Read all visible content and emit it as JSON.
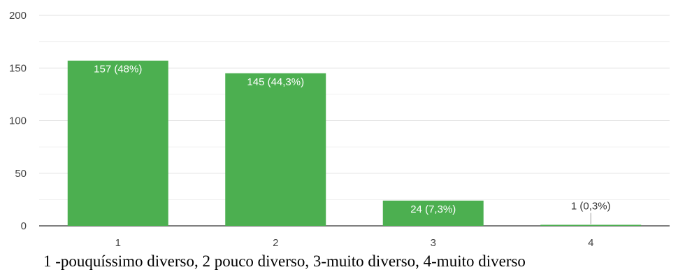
{
  "chart_data": {
    "type": "bar",
    "categories": [
      "1",
      "2",
      "3",
      "4"
    ],
    "values": [
      157,
      145,
      24,
      1
    ],
    "data_labels": [
      "157 (48%)",
      "145 (44,3%)",
      "24 (7,3%)",
      "1 (0,3%)"
    ],
    "yticks": [
      0,
      50,
      100,
      150,
      200
    ],
    "ylim": [
      0,
      200
    ],
    "grid": true,
    "bar_color": "#4caf50",
    "title": "",
    "xlabel": "",
    "ylabel": ""
  },
  "caption": "1 -pouquíssimo diverso, 2 pouco diverso, 3-muito diverso, 4-muito diverso"
}
